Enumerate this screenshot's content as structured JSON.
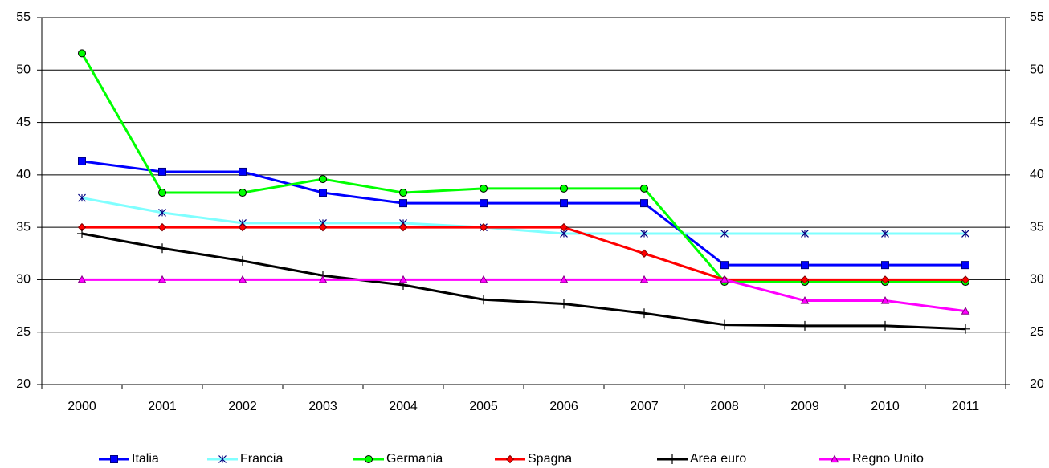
{
  "chart_data": {
    "type": "line",
    "categories": [
      "2000",
      "2001",
      "2002",
      "2003",
      "2004",
      "2005",
      "2006",
      "2007",
      "2008",
      "2009",
      "2010",
      "2011"
    ],
    "series": [
      {
        "name": "Italia",
        "color": "#0000ff",
        "marker": "square",
        "values": [
          41.3,
          40.3,
          40.3,
          38.3,
          37.3,
          37.3,
          37.3,
          37.3,
          31.4,
          31.4,
          31.4,
          31.4
        ]
      },
      {
        "name": "Francia",
        "color": "#80ffff",
        "marker": "asterisk",
        "values": [
          37.8,
          36.4,
          35.4,
          35.4,
          35.4,
          35.0,
          34.4,
          34.4,
          34.4,
          34.4,
          34.4,
          34.4
        ]
      },
      {
        "name": "Germania",
        "color": "#00ff00",
        "marker": "circle",
        "values": [
          51.6,
          38.3,
          38.3,
          39.6,
          38.3,
          38.7,
          38.7,
          38.7,
          29.8,
          29.8,
          29.8,
          29.8
        ]
      },
      {
        "name": "Spagna",
        "color": "#ff0000",
        "marker": "diamond",
        "values": [
          35,
          35,
          35,
          35,
          35,
          35,
          35,
          32.5,
          30,
          30,
          30,
          30
        ]
      },
      {
        "name": "Area euro",
        "color": "#000000",
        "marker": "plus",
        "values": [
          34.4,
          33.0,
          31.8,
          30.4,
          29.5,
          28.1,
          27.7,
          26.8,
          25.7,
          25.6,
          25.6,
          25.3
        ]
      },
      {
        "name": "Regno Unito",
        "color": "#ff00ff",
        "marker": "triangle",
        "values": [
          30,
          30,
          30,
          30,
          30,
          30,
          30,
          30,
          30,
          28,
          28,
          27
        ]
      }
    ],
    "ylim": [
      20,
      55
    ],
    "yticks": [
      20,
      25,
      30,
      35,
      40,
      45,
      50,
      55
    ],
    "y2lim": [
      20,
      55
    ],
    "y2ticks": [
      20,
      25,
      30,
      35,
      40,
      45,
      50,
      55
    ],
    "grid": true,
    "legend": "bottom"
  }
}
